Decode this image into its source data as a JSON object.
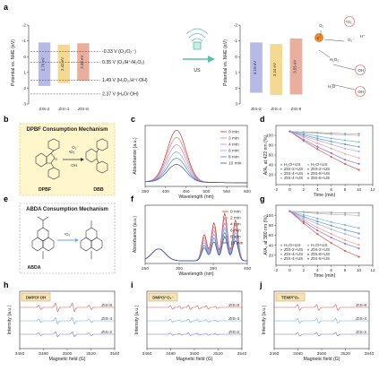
{
  "figure": {
    "panel_labels": [
      "a",
      "b",
      "c",
      "d",
      "e",
      "f",
      "g",
      "h",
      "i",
      "j"
    ]
  },
  "a": {
    "ylabel": "Potential vs. NHE (eV)",
    "yticks": [
      "-2",
      "-1",
      "0",
      "1",
      "2",
      "3"
    ],
    "left": {
      "bands": [
        {
          "name": "ZIS-2",
          "gap": "2.76 eV",
          "color": "#a9aee0"
        },
        {
          "name": "ZIS-4",
          "gap": "2.43 eV",
          "color": "#f1d27f"
        },
        {
          "name": "ZIS-8",
          "gap": "2.38 eV",
          "color": "#e6a08e"
        }
      ],
      "levels": [
        {
          "value": -0.33,
          "label": "-0.33 V (O₂/O₂⁻)"
        },
        {
          "value": 0.35,
          "label": "0.35 V (O₂/H⁺/H₂O₂)"
        },
        {
          "value": 1.49,
          "label": "1.49 V (H₂O₂,H⁺/·OH)"
        },
        {
          "value": 2.37,
          "label": "2.37 V (H₂O/·OH)"
        }
      ]
    },
    "arrow_label": "US",
    "right": {
      "bands": [
        {
          "name": "ZIS-2",
          "gap": "3.19 eV",
          "color": "#a9aee0"
        },
        {
          "name": "ZIS-4",
          "gap": "3.24 eV",
          "color": "#f1d27f"
        },
        {
          "name": "ZIS-8",
          "gap": "3.55 eV",
          "color": "#e6a08e"
        }
      ],
      "species": [
        {
          "label": "O₂",
          "kind": "text"
        },
        {
          "label": "¹O₂",
          "kind": "text"
        },
        {
          "label": "e⁻",
          "kind": "bubble"
        },
        {
          "label": "O₂⁻",
          "kind": "text"
        },
        {
          "label": "H⁺",
          "kind": "text"
        },
        {
          "label": "H₂O₂",
          "kind": "text"
        },
        {
          "label": "·OH",
          "kind": "text"
        },
        {
          "label": "H₂O",
          "kind": "text"
        },
        {
          "label": "·OH",
          "kind": "text"
        }
      ]
    }
  },
  "b": {
    "title": "DPBF Consumption Mechanism",
    "reactant": "DPBF",
    "product": "DBB",
    "species": [
      "¹O₂",
      "O₂⁻",
      "·OH"
    ]
  },
  "c": {
    "xlabel": "Wavelength (nm)",
    "ylabel": "Absorbance (a.u.)",
    "xticks": [
      "350",
      "400",
      "450",
      "500",
      "550",
      "600"
    ],
    "legend": [
      "0 min",
      "2 min",
      "4 min",
      "6 min",
      "8 min",
      "10 min"
    ],
    "colors": [
      "#c0392b",
      "#e67e72",
      "#c48bd6",
      "#7fb3d5",
      "#5b7fc7",
      "#3a4fa6"
    ]
  },
  "d": {
    "xlabel": "Time (min)",
    "ylabel": "A/A₀ at 422 nm (%)",
    "xticks": [
      "-2",
      "0",
      "2",
      "4",
      "6",
      "8",
      "10",
      "12"
    ],
    "yticks": [
      "20",
      "40",
      "60",
      "80",
      "100"
    ],
    "legend": [
      "H₂O+US",
      "H₂O+US",
      "ZIS-2+US",
      "ZIS-2+US",
      "ZIS-4+US",
      "ZIS-8+US",
      "ZIS-4+US",
      "ZIS-8+US"
    ]
  },
  "e": {
    "title": "ABDA Consumption Mechanism",
    "reactant": "ABDA",
    "species": [
      "¹O₂"
    ]
  },
  "f": {
    "xlabel": "Wavelength (nm)",
    "ylabel": "Absorbance (a.u.)",
    "xticks": [
      "250",
      "300",
      "350",
      "400"
    ],
    "legend": [
      "0 min",
      "2 min",
      "4 min",
      "6 min",
      "8 min",
      "10 min"
    ],
    "colors": [
      "#c0392b",
      "#e67e72",
      "#c48bd6",
      "#7fb3d5",
      "#5b7fc7",
      "#3a4fa6"
    ]
  },
  "g": {
    "xlabel": "Time (min)",
    "ylabel": "A/A₀ at 380 nm (%)",
    "xticks": [
      "-2",
      "0",
      "2",
      "4",
      "6",
      "8",
      "10",
      "12"
    ],
    "yticks": [
      "20",
      "40",
      "60",
      "80",
      "100"
    ],
    "legend": [
      "H₂O+US",
      "H₂O+US",
      "ZIS-2+US",
      "ZIS-2+US",
      "ZIS-4+US",
      "ZIS-8+US",
      "ZIS-4+US",
      "ZIS-8+US"
    ]
  },
  "h": {
    "tag": "DMPO/·OH",
    "xlabel": "Magnetic field (G)",
    "ylabel": "Intensity (a.u.)",
    "xticks": [
      "3460",
      "3480",
      "3500",
      "3520",
      "3540"
    ],
    "traces": [
      {
        "name": "ZIS-8",
        "color": "#d9534f"
      },
      {
        "name": "ZIS-4",
        "color": "#5dade2"
      },
      {
        "name": "ZIS-2",
        "color": "#7d6bd1"
      }
    ]
  },
  "i": {
    "tag": "DMPO/·O₂⁻",
    "xlabel": "Magnetic field (G)",
    "ylabel": "Intensity (a.u.)",
    "xticks": [
      "3460",
      "3480",
      "3500",
      "3520",
      "3540"
    ],
    "traces": [
      {
        "name": "ZIS-8",
        "color": "#d9534f"
      },
      {
        "name": "ZIS-4",
        "color": "#5dade2"
      },
      {
        "name": "ZIS-2",
        "color": "#7d6bd1"
      }
    ]
  },
  "j": {
    "tag": "TEMP/¹O₂",
    "xlabel": "Magnetic field (G)",
    "ylabel": "Intensity (a.u.)",
    "xticks": [
      "3460",
      "3480",
      "3500",
      "3520",
      "3540"
    ],
    "traces": [
      {
        "name": "ZIS-8",
        "color": "#d9534f"
      },
      {
        "name": "ZIS-4",
        "color": "#5dade2"
      },
      {
        "name": "ZIS-2",
        "color": "#7d6bd1"
      }
    ]
  },
  "chart_data": [
    {
      "panel": "a-left",
      "type": "diagram",
      "ylabel": "Potential vs. NHE (eV)",
      "ylim": [
        -2,
        3
      ],
      "bands": [
        {
          "name": "ZIS-2",
          "cb": -0.9,
          "vb": 1.86,
          "gap": "2.76 eV"
        },
        {
          "name": "ZIS-4",
          "cb": -0.75,
          "vb": 1.68,
          "gap": "2.43 eV"
        },
        {
          "name": "ZIS-8",
          "cb": -0.85,
          "vb": 1.53,
          "gap": "2.38 eV"
        }
      ],
      "levels": [
        -0.33,
        0.35,
        1.49,
        2.37
      ]
    },
    {
      "panel": "a-right",
      "type": "diagram",
      "ylim": [
        -2,
        3
      ],
      "bands": [
        {
          "name": "ZIS-2",
          "cb": -0.9,
          "vb": 2.29,
          "gap": "3.19 eV"
        },
        {
          "name": "ZIS-4",
          "cb": -0.8,
          "vb": 2.44,
          "gap": "3.24 eV"
        },
        {
          "name": "ZIS-8",
          "cb": -1.15,
          "vb": 2.4,
          "gap": "3.55 eV"
        }
      ]
    },
    {
      "panel": "c",
      "type": "line",
      "xlabel": "Wavelength (nm)",
      "ylabel": "Absorbance (a.u.)",
      "xlim": [
        340,
        600
      ],
      "peak_nm": 420,
      "peak_heights": [
        1.0,
        0.86,
        0.72,
        0.58,
        0.46,
        0.34
      ],
      "series": [
        "0 min",
        "2 min",
        "4 min",
        "6 min",
        "8 min",
        "10 min"
      ]
    },
    {
      "panel": "d",
      "type": "line",
      "xlabel": "Time (min)",
      "ylabel": "A/A₀ at 422 nm (%)",
      "xlim": [
        -2,
        12
      ],
      "ylim": [
        10,
        110
      ],
      "x": [
        0,
        2,
        4,
        6,
        8,
        10
      ],
      "series": [
        {
          "values": [
            100,
            99,
            98,
            97,
            96,
            96
          ],
          "color": "#9e9e9e"
        },
        {
          "values": [
            100,
            98,
            97,
            95,
            94,
            93
          ],
          "color": "#b5b5b5"
        },
        {
          "values": [
            100,
            96,
            92,
            88,
            85,
            82
          ],
          "color": "#76b7d8"
        },
        {
          "values": [
            100,
            94,
            88,
            83,
            78,
            74
          ],
          "color": "#5a9fd0"
        },
        {
          "values": [
            100,
            90,
            80,
            71,
            62,
            55
          ],
          "color": "#f2a08f"
        },
        {
          "values": [
            100,
            84,
            70,
            57,
            45,
            35
          ],
          "color": "#e05b4f"
        },
        {
          "values": [
            100,
            92,
            85,
            78,
            71,
            66
          ],
          "color": "#b9a6e0"
        },
        {
          "values": [
            100,
            86,
            74,
            63,
            52,
            45
          ],
          "color": "#8b79d3"
        }
      ]
    },
    {
      "panel": "f",
      "type": "line",
      "xlabel": "Wavelength (nm)",
      "ylabel": "Absorbance (a.u.)",
      "xlim": [
        230,
        420
      ],
      "peaks_nm": [
        340,
        358,
        378,
        398
      ],
      "peak_heights": [
        1.0,
        0.9,
        0.8,
        0.7,
        0.6,
        0.5
      ],
      "series": [
        "0 min",
        "2 min",
        "4 min",
        "6 min",
        "8 min",
        "10 min"
      ]
    },
    {
      "panel": "g",
      "type": "line",
      "xlabel": "Time (min)",
      "ylabel": "A/A₀ at 380 nm (%)",
      "xlim": [
        -2,
        12
      ],
      "ylim": [
        10,
        110
      ],
      "x": [
        0,
        2,
        4,
        6,
        8,
        10
      ],
      "series": [
        {
          "values": [
            100,
            99,
            98,
            98,
            97,
            97
          ],
          "color": "#9e9e9e"
        },
        {
          "values": [
            100,
            98,
            96,
            95,
            94,
            93
          ],
          "color": "#b5b5b5"
        },
        {
          "values": [
            100,
            94,
            88,
            82,
            77,
            72
          ],
          "color": "#76b7d8"
        },
        {
          "values": [
            100,
            91,
            83,
            76,
            69,
            63
          ],
          "color": "#5a9fd0"
        },
        {
          "values": [
            100,
            86,
            73,
            62,
            52,
            44
          ],
          "color": "#f2a08f"
        },
        {
          "values": [
            100,
            80,
            62,
            47,
            34,
            24
          ],
          "color": "#e05b4f"
        },
        {
          "values": [
            100,
            89,
            79,
            70,
            62,
            55
          ],
          "color": "#b9a6e0"
        },
        {
          "values": [
            100,
            83,
            68,
            56,
            46,
            38
          ],
          "color": "#8b79d3"
        }
      ]
    },
    {
      "panel": "h",
      "type": "line",
      "xlabel": "Magnetic field (G)",
      "xlim": [
        3460,
        3545
      ],
      "pattern": "1:2:2:1 quartet",
      "peaks_G": [
        3478,
        3493,
        3508,
        3523
      ],
      "series": [
        "ZIS-8",
        "ZIS-4",
        "ZIS-2"
      ]
    },
    {
      "panel": "i",
      "type": "line",
      "xlabel": "Magnetic field (G)",
      "xlim": [
        3460,
        3545
      ],
      "pattern": "sextet-like",
      "series": [
        "ZIS-8",
        "ZIS-4",
        "ZIS-2"
      ]
    },
    {
      "panel": "j",
      "type": "line",
      "xlabel": "Magnetic field (G)",
      "xlim": [
        3460,
        3545
      ],
      "pattern": "1:1:1 triplet",
      "peaks_G": [
        3482,
        3499,
        3516
      ],
      "series": [
        "ZIS-8",
        "ZIS-4",
        "ZIS-2"
      ]
    }
  ]
}
